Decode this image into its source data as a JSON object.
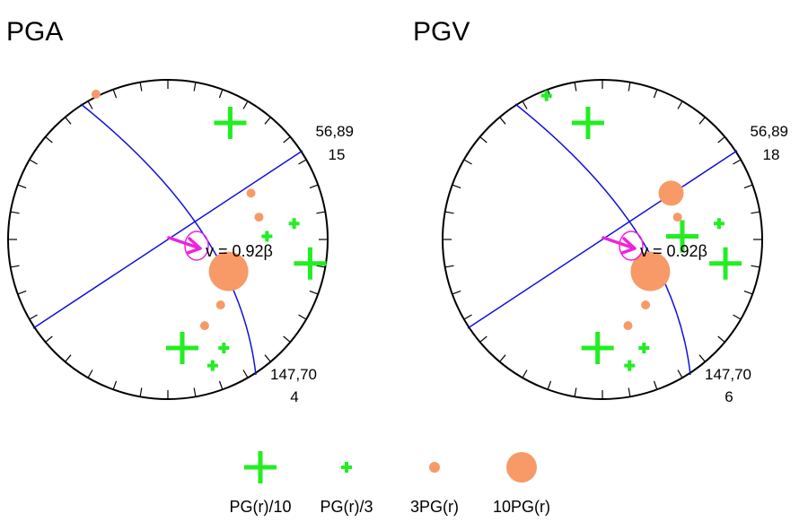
{
  "colors": {
    "plus": "#22ee22",
    "circle": "#f79a68",
    "plane": "#1010dd",
    "arrow": "#ee22dd",
    "frame": "#000000"
  },
  "panels": [
    {
      "title": "PGA",
      "plane_labels": [
        {
          "angles": "56,89",
          "value": "15"
        },
        {
          "angles": "147,70",
          "value": "4"
        }
      ],
      "velocity_label": "v = 0.92β",
      "markers": [
        {
          "kind": "circle",
          "level": 2,
          "x": -0.45,
          "y": 0.91
        },
        {
          "kind": "plus",
          "level": 0,
          "x": 0.39,
          "y": 0.73
        },
        {
          "kind": "circle",
          "level": 2,
          "x": 0.52,
          "y": 0.29
        },
        {
          "kind": "circle",
          "level": 2,
          "x": 0.57,
          "y": 0.14
        },
        {
          "kind": "plus",
          "level": 1,
          "x": 0.79,
          "y": 0.1
        },
        {
          "kind": "plus",
          "level": 1,
          "x": 0.62,
          "y": 0.02
        },
        {
          "kind": "plus",
          "level": 0,
          "x": 0.89,
          "y": -0.15
        },
        {
          "kind": "circle",
          "level": 3,
          "x": 0.38,
          "y": -0.2
        },
        {
          "kind": "circle",
          "level": 2,
          "x": 0.33,
          "y": -0.41
        },
        {
          "kind": "circle",
          "level": 2,
          "x": 0.23,
          "y": -0.54
        },
        {
          "kind": "plus",
          "level": 0,
          "x": 0.09,
          "y": -0.68
        },
        {
          "kind": "plus",
          "level": 1,
          "x": 0.35,
          "y": -0.68
        },
        {
          "kind": "plus",
          "level": 1,
          "x": 0.28,
          "y": -0.79
        }
      ]
    },
    {
      "title": "PGV",
      "plane_labels": [
        {
          "angles": "56,89",
          "value": "18"
        },
        {
          "angles": "147,70",
          "value": "6"
        }
      ],
      "velocity_label": "v = 0.92β",
      "markers": [
        {
          "kind": "plus",
          "level": 1,
          "x": -0.35,
          "y": 0.9
        },
        {
          "kind": "plus",
          "level": 0,
          "x": -0.09,
          "y": 0.73
        },
        {
          "kind": "circle",
          "level": 3,
          "x": 0.43,
          "y": 0.29
        },
        {
          "kind": "circle",
          "level": 2,
          "x": 0.47,
          "y": 0.14
        },
        {
          "kind": "plus",
          "level": 1,
          "x": 0.73,
          "y": 0.1
        },
        {
          "kind": "plus",
          "level": 0,
          "x": 0.5,
          "y": 0.02
        },
        {
          "kind": "plus",
          "level": 0,
          "x": 0.77,
          "y": -0.15
        },
        {
          "kind": "circle",
          "level": 3,
          "x": 0.3,
          "y": -0.2
        },
        {
          "kind": "circle",
          "level": 2,
          "x": 0.27,
          "y": -0.41
        },
        {
          "kind": "circle",
          "level": 2,
          "x": 0.16,
          "y": -0.54
        },
        {
          "kind": "plus",
          "level": 0,
          "x": -0.03,
          "y": -0.68
        },
        {
          "kind": "plus",
          "level": 1,
          "x": 0.26,
          "y": -0.68
        },
        {
          "kind": "plus",
          "level": 1,
          "x": 0.17,
          "y": -0.79
        }
      ]
    }
  ],
  "legend": [
    {
      "kind": "plus",
      "level": 0,
      "label": "PG(r)/10"
    },
    {
      "kind": "plus",
      "level": 1,
      "label": "PG(r)/3"
    },
    {
      "kind": "circle",
      "level": 2,
      "label": "3PG(r)"
    },
    {
      "kind": "circle",
      "level": 3,
      "label": "10PG(r)"
    }
  ]
}
